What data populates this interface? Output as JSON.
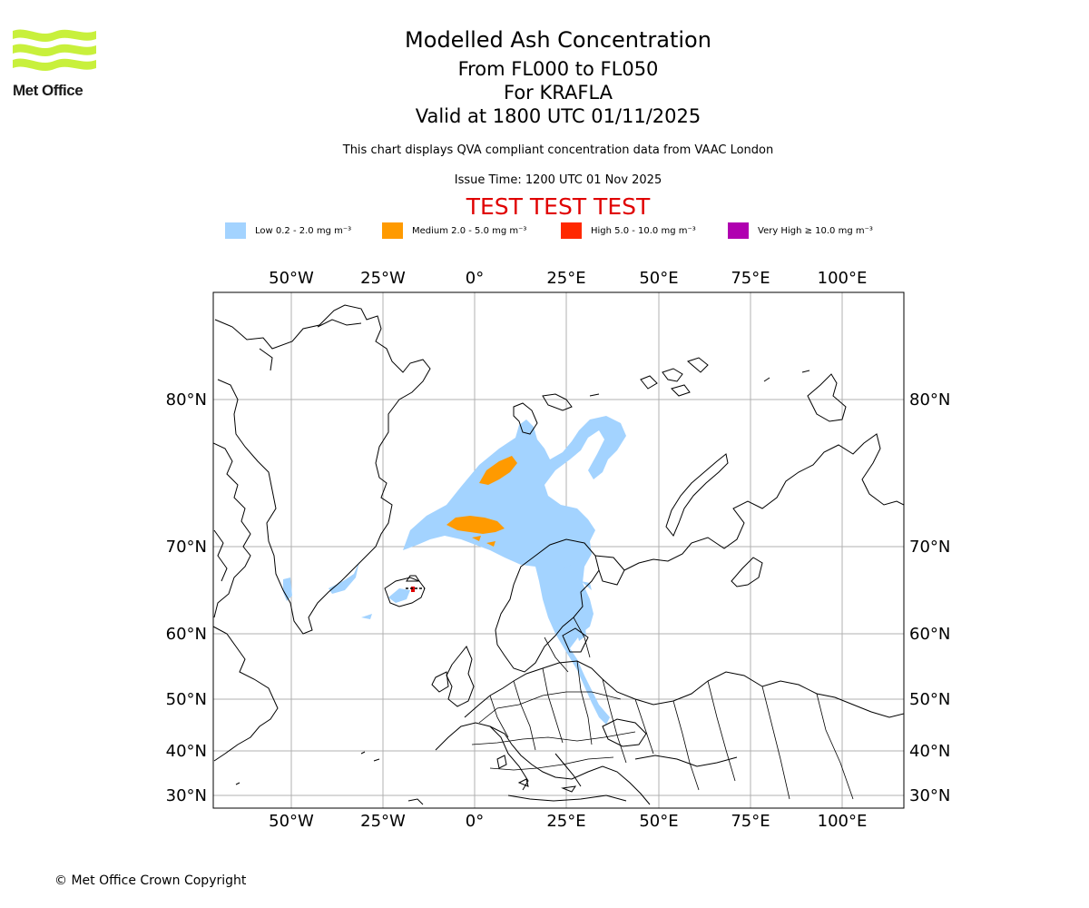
{
  "logo": {
    "text": "Met Office",
    "color": "#c8f03c"
  },
  "titles": {
    "main": "Modelled Ash Concentration",
    "levels": "From FL000 to FL050",
    "volcano": "For KRAFLA",
    "valid": "Valid at 1800 UTC 01/11/2025",
    "subtitle": "This chart displays QVA compliant concentration data from VAAC London",
    "issue_time": "Issue Time: 1200 UTC 01 Nov 2025",
    "test_banner": "TEST TEST TEST"
  },
  "legend": [
    {
      "label": "Low 0.2 - 2.0 mg m⁻³",
      "color": "#a3d3ff"
    },
    {
      "label": "Medium 2.0 - 5.0 mg m⁻³",
      "color": "#ff9a00"
    },
    {
      "label": "High 5.0 - 10.0 mg m⁻³",
      "color": "#ff2800"
    },
    {
      "label": "Very High  ≥  10.0 mg m⁻³",
      "color": "#b000b0"
    }
  ],
  "map": {
    "lon_labels": [
      "50°W",
      "25°W",
      "0°",
      "25°E",
      "50°E",
      "75°E",
      "100°E"
    ],
    "lat_labels": [
      "80°N",
      "70°N",
      "60°N",
      "50°N",
      "40°N",
      "30°N"
    ],
    "lon_range": [
      -71.5,
      116.5
    ],
    "gridlines": true,
    "volcano_marker_color": "#e00000"
  },
  "footer": {
    "copyright": "© Met Office Crown Copyright"
  }
}
